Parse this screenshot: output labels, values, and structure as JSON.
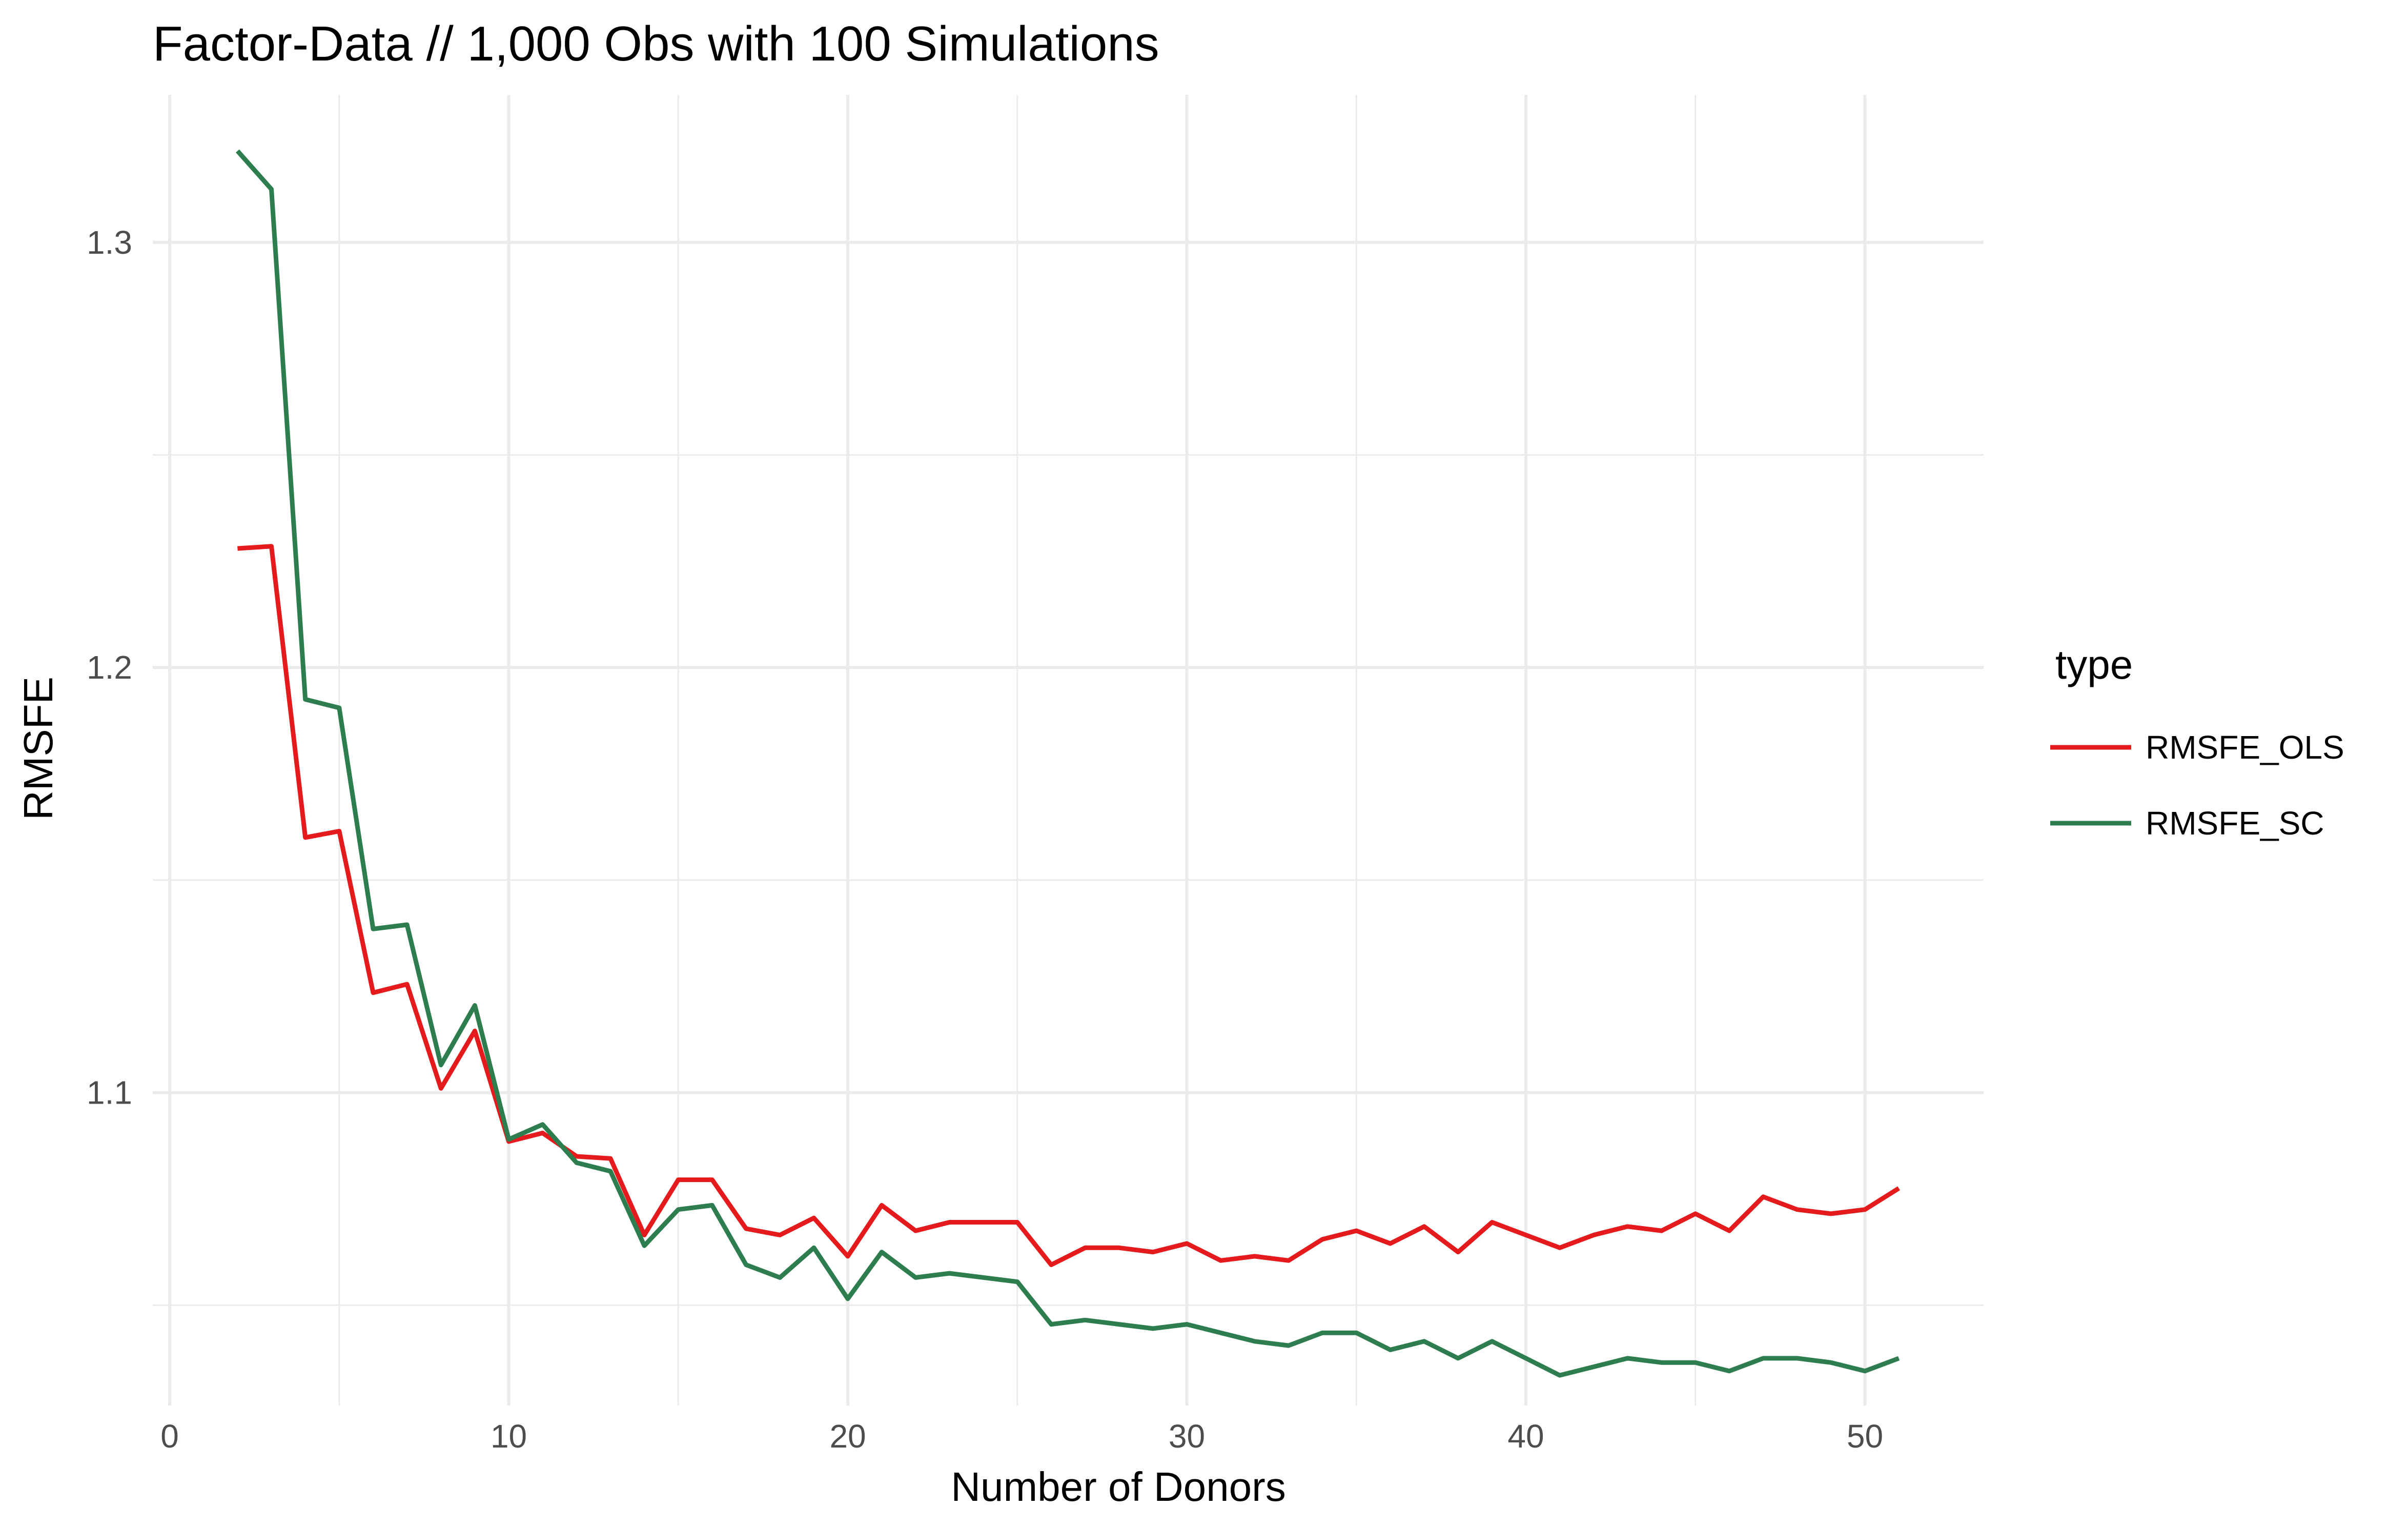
{
  "chart_data": {
    "type": "line",
    "title": "Factor-Data // 1,000 Obs with 100 Simulations",
    "xlabel": "Number of Donors",
    "ylabel": "RMSFE",
    "xlim": [
      -0.5,
      53.5
    ],
    "ylim": [
      1.0264,
      1.3347
    ],
    "x_ticks": [
      0,
      10,
      20,
      30,
      40,
      50
    ],
    "y_ticks": [
      1.1,
      1.2,
      1.3
    ],
    "x_tick_labels": [
      "0",
      "10",
      "20",
      "30",
      "40",
      "50"
    ],
    "y_tick_labels": [
      "1.1",
      "1.2",
      "1.3"
    ],
    "grid": true,
    "legend": {
      "title": "type",
      "position": "right"
    },
    "x": [
      2,
      3,
      4,
      5,
      6,
      7,
      8,
      9,
      10,
      11,
      12,
      13,
      14,
      15,
      16,
      17,
      18,
      19,
      20,
      21,
      22,
      23,
      24,
      25,
      26,
      27,
      28,
      29,
      30,
      31,
      32,
      33,
      34,
      35,
      36,
      37,
      38,
      39,
      40,
      41,
      42,
      43,
      44,
      45,
      46,
      47,
      48,
      49,
      50,
      51
    ],
    "series": [
      {
        "name": "RMSFE_OLS",
        "color": "#e41a1c",
        "values": [
          1.228,
          1.2285,
          1.16,
          1.1615,
          1.1235,
          1.1255,
          1.101,
          1.1145,
          1.0885,
          1.0905,
          1.085,
          1.0845,
          1.0665,
          1.0795,
          1.0795,
          1.068,
          1.0665,
          1.0705,
          1.0615,
          1.0735,
          1.0675,
          1.0695,
          1.0695,
          1.0695,
          1.0595,
          1.0635,
          1.0635,
          1.0625,
          1.0645,
          1.0605,
          1.0615,
          1.0605,
          1.0655,
          1.0675,
          1.0645,
          1.0685,
          1.0625,
          1.0695,
          1.0665,
          1.0635,
          1.0665,
          1.0685,
          1.0675,
          1.0715,
          1.0675,
          1.0755,
          1.0725,
          1.0715,
          1.0725,
          1.0775
        ]
      },
      {
        "name": "RMSFE_SC",
        "color": "#2e7d4f",
        "values": [
          1.3215,
          1.3125,
          1.1925,
          1.1905,
          1.1385,
          1.1395,
          1.1065,
          1.1205,
          1.089,
          1.0925,
          1.0835,
          1.0815,
          1.064,
          1.0725,
          1.0735,
          1.0595,
          1.0565,
          1.0635,
          1.0515,
          1.0625,
          1.0565,
          1.0575,
          1.0565,
          1.0555,
          1.0455,
          1.0465,
          1.0455,
          1.0445,
          1.0455,
          1.0435,
          1.0415,
          1.0405,
          1.0435,
          1.0435,
          1.0395,
          1.0415,
          1.0375,
          1.0415,
          1.0375,
          1.0335,
          1.0355,
          1.0375,
          1.0365,
          1.0365,
          1.0345,
          1.0375,
          1.0375,
          1.0365,
          1.0345,
          1.0375
        ]
      }
    ]
  }
}
